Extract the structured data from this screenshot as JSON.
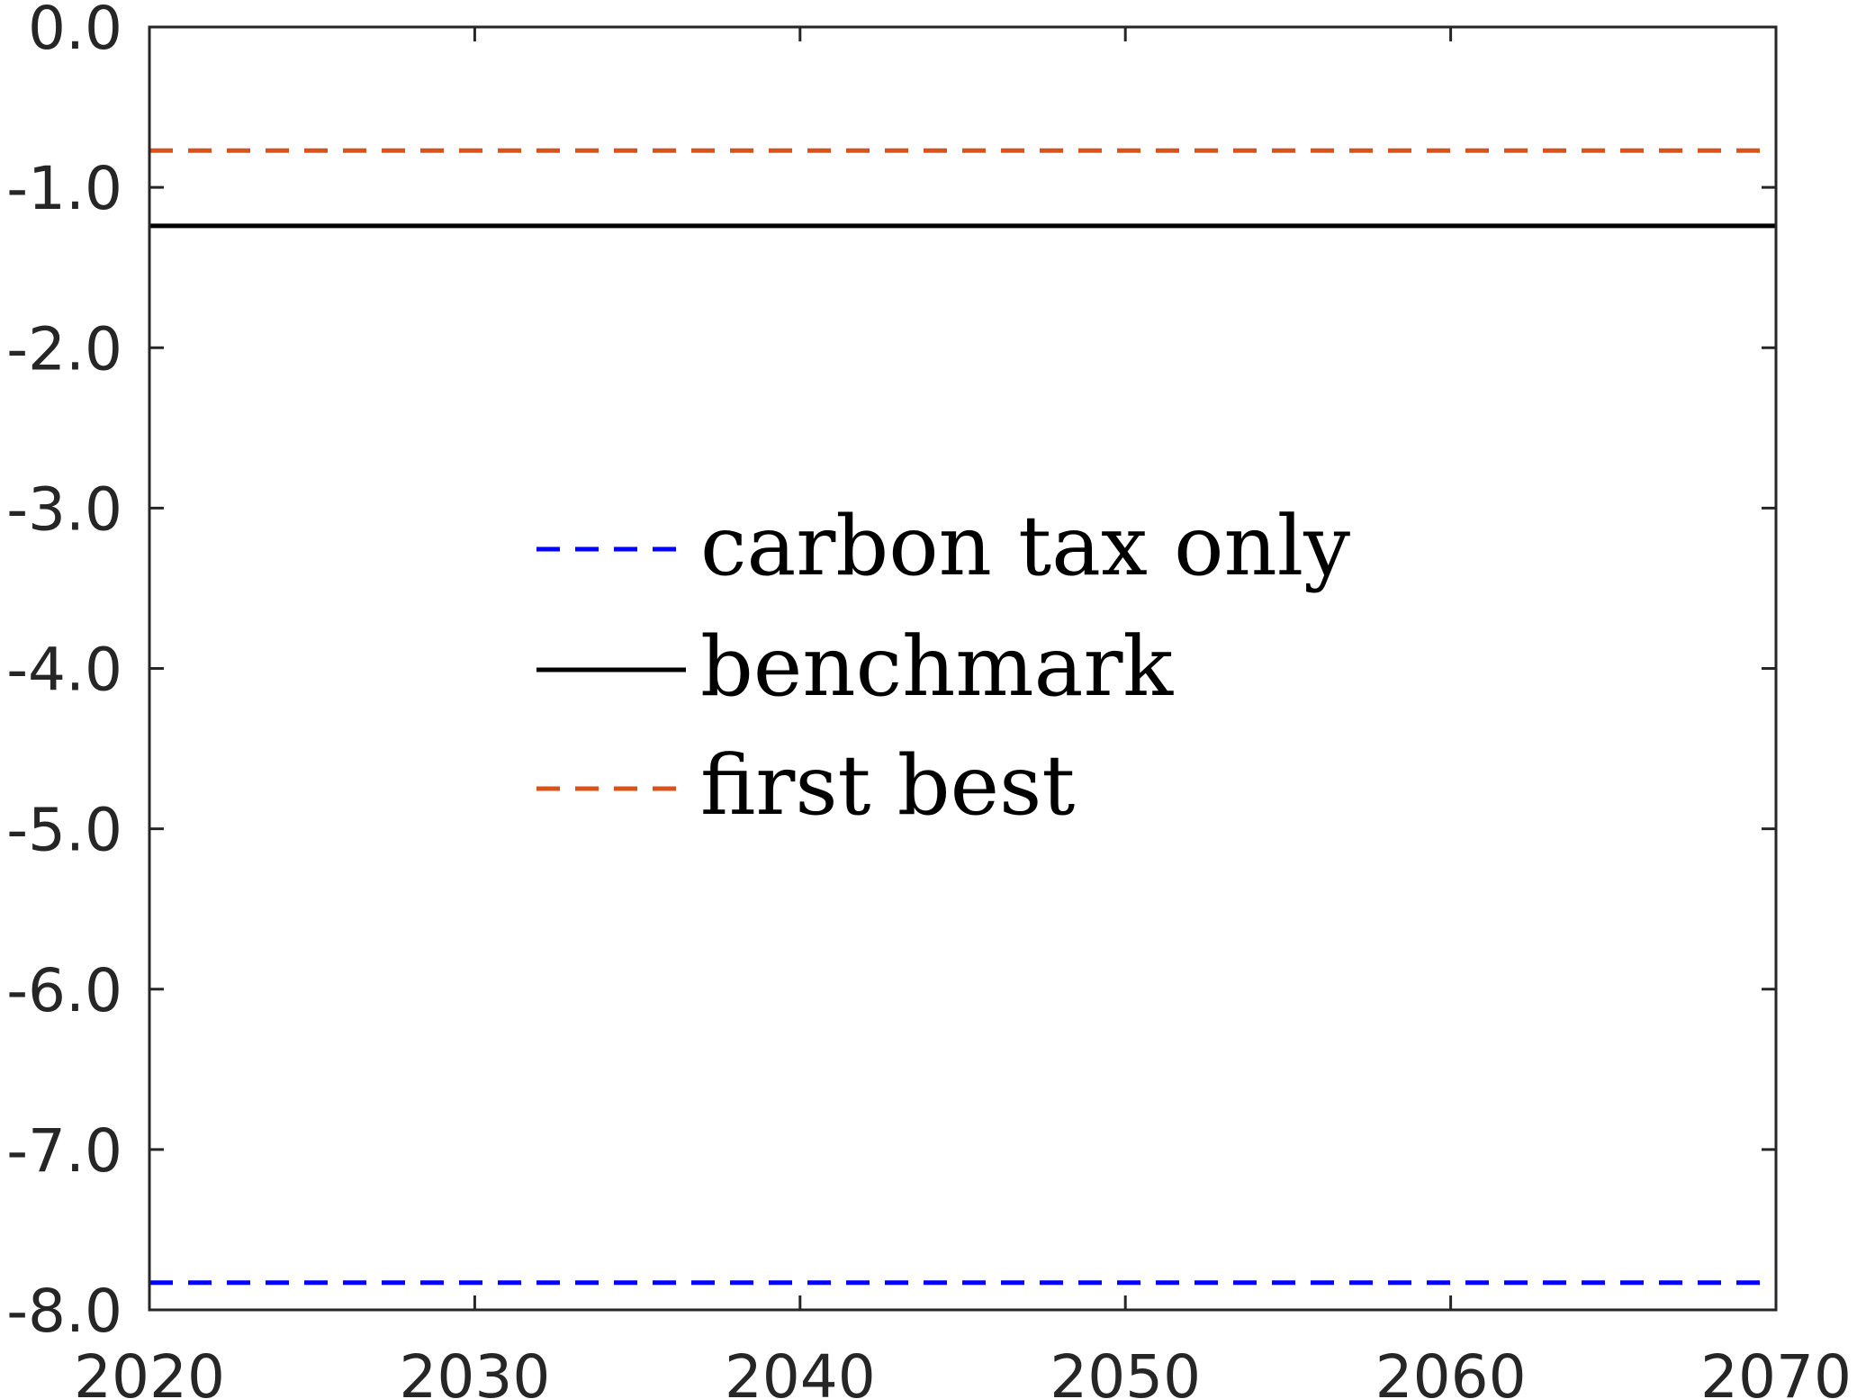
{
  "chart_data": {
    "type": "line",
    "title": "",
    "xlabel": "",
    "ylabel": "",
    "xlim": [
      2020,
      2070
    ],
    "ylim": [
      -8.0,
      0.0
    ],
    "x_ticks": [
      2020,
      2030,
      2040,
      2050,
      2060,
      2070
    ],
    "x_tick_labels": [
      "2020",
      "2030",
      "2040",
      "2050",
      "2060",
      "2070"
    ],
    "y_ticks": [
      0,
      -1,
      -2,
      -3,
      -4,
      -5,
      -6,
      -7,
      -8
    ],
    "y_tick_labels": [
      "0.0",
      "-1.0",
      "-2.0",
      "-3.0",
      "-4.0",
      "-5.0",
      "-6.0",
      "-7.0",
      "-8.0"
    ],
    "grid": false,
    "legend_position": "center",
    "x": [
      2020,
      2030,
      2040,
      2050,
      2060,
      2070
    ],
    "series": [
      {
        "name": "carbon tax only",
        "color": "#0000ff",
        "dash": "dashed",
        "values": [
          -7.83,
          -7.83,
          -7.83,
          -7.83,
          -7.83,
          -7.83
        ]
      },
      {
        "name": "benchmark",
        "color": "#000000",
        "dash": "solid",
        "values": [
          -1.24,
          -1.24,
          -1.24,
          -1.24,
          -1.24,
          -1.24
        ]
      },
      {
        "name": "first best",
        "color": "#d95319",
        "dash": "dashed",
        "values": [
          -0.77,
          -0.77,
          -0.77,
          -0.77,
          -0.77,
          -0.77
        ]
      }
    ]
  }
}
